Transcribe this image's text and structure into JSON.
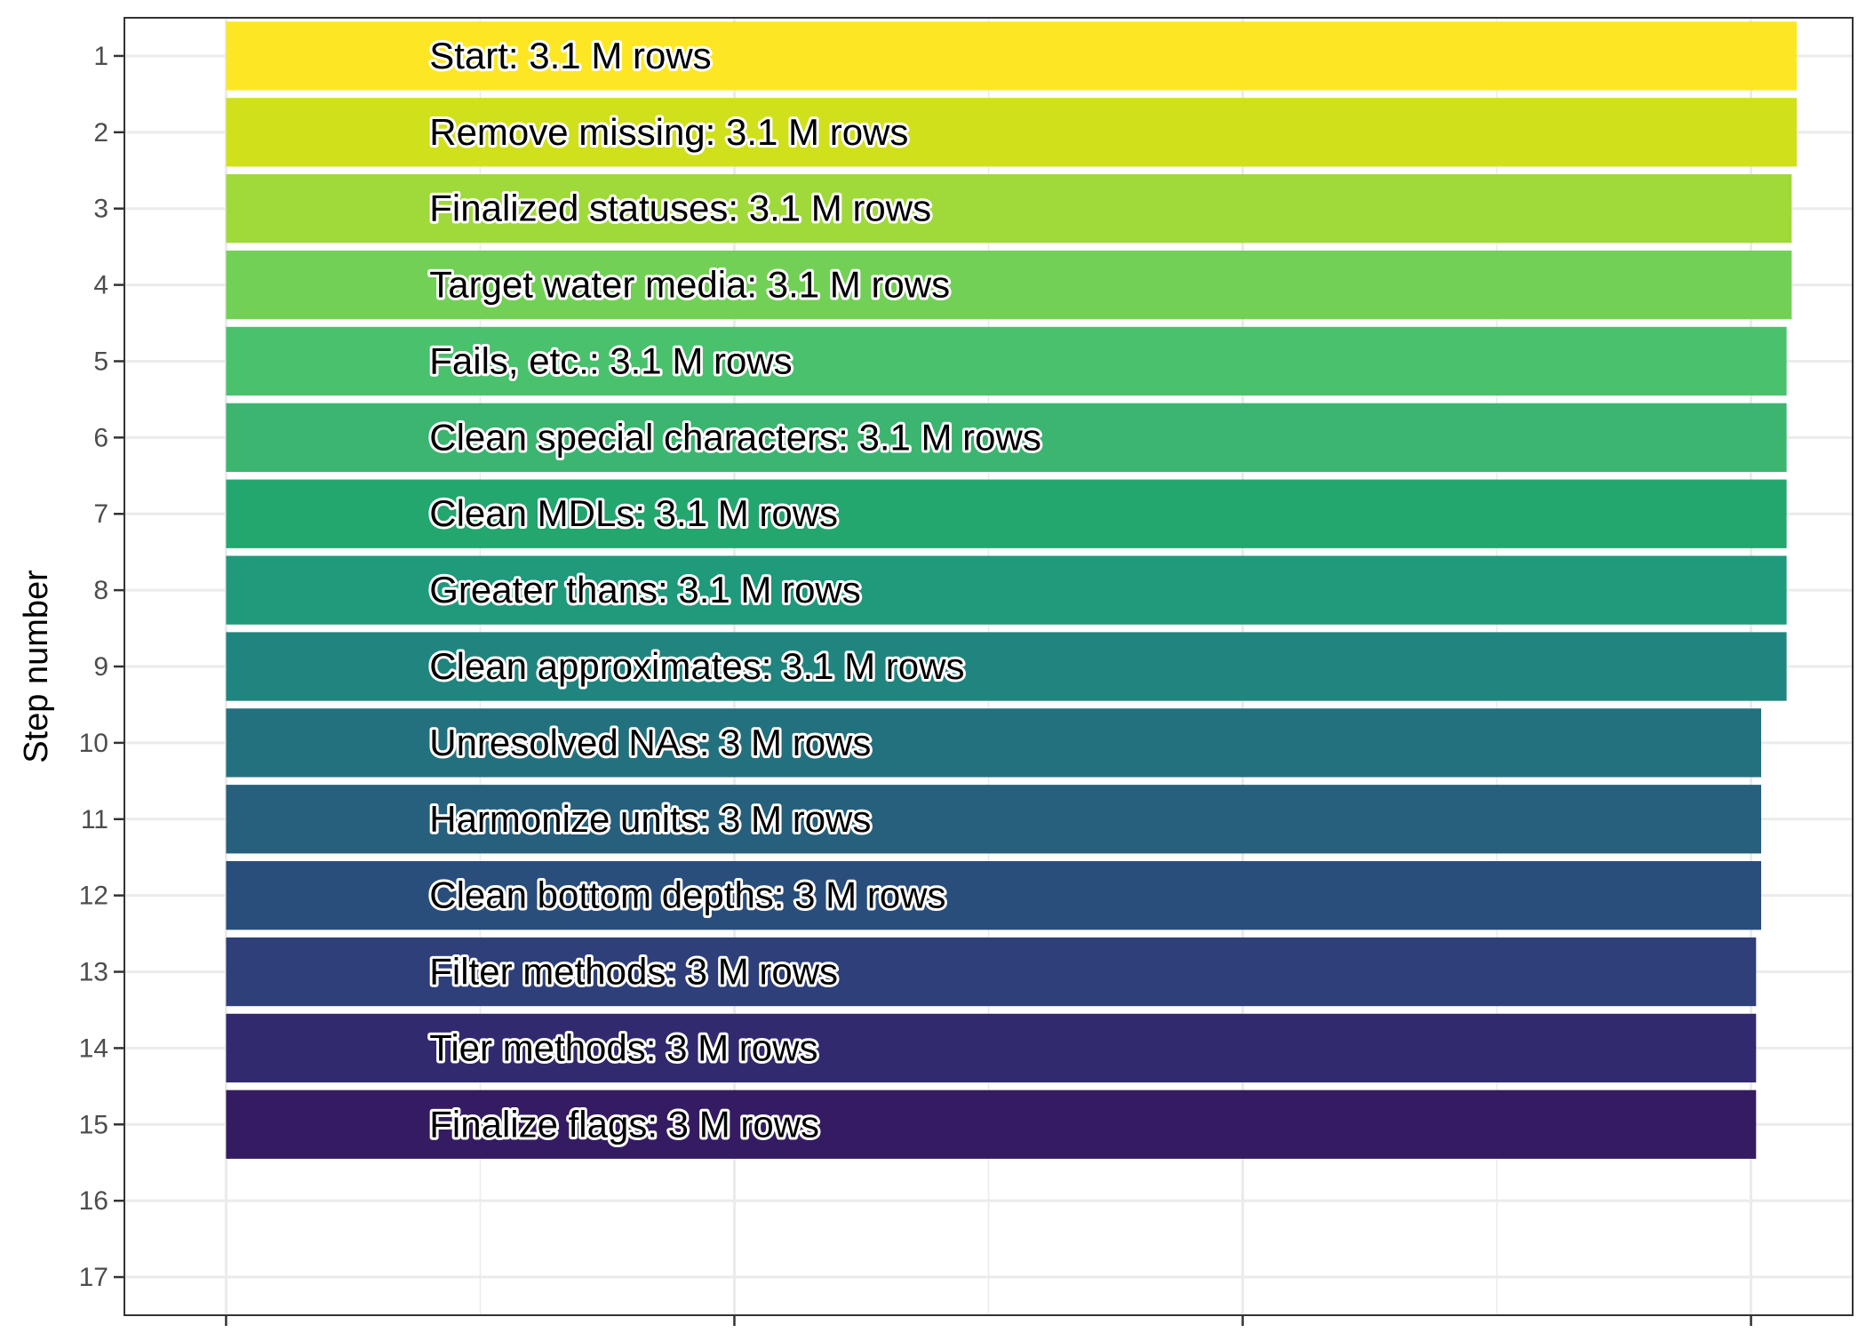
{
  "chart_data": {
    "type": "bar",
    "orientation": "horizontal",
    "ylabel": "Step number",
    "xlabel": "",
    "title": "",
    "y_ticks": [
      "1",
      "2",
      "3",
      "4",
      "5",
      "6",
      "7",
      "8",
      "9",
      "10",
      "11",
      "12",
      "13",
      "14",
      "15",
      "16",
      "17"
    ],
    "ylim": [
      0.5,
      17.5
    ],
    "xlim": [
      -0.2,
      3.2
    ],
    "x_ticks": [
      0,
      1,
      2,
      3
    ],
    "x_tick_labels": [
      "",
      "",
      "",
      ""
    ],
    "grid": true,
    "legend": "none",
    "categories": [
      1,
      2,
      3,
      4,
      5,
      6,
      7,
      8,
      9,
      10,
      11,
      12,
      13,
      14,
      15
    ],
    "labels": [
      "Start:  3.1 M rows",
      "Remove missing:  3.1 M rows",
      "Finalized statuses:  3.1 M rows",
      "Target water media:  3.1 M rows",
      "Fails, etc.:  3.1 M rows",
      "Clean special characters:  3.1 M rows",
      "Clean MDLs:  3.1 M rows",
      "Greater thans:  3.1 M rows",
      "Clean approximates:  3.1 M rows",
      "Unresolved NAs:  3 M rows",
      "Harmonize units:  3 M rows",
      "Clean bottom depths:  3 M rows",
      "Filter methods:  3 M rows",
      "Tier methods:  3 M rows",
      "Finalize flags:  3 M rows"
    ],
    "values": [
      3.09,
      3.09,
      3.08,
      3.08,
      3.07,
      3.07,
      3.07,
      3.07,
      3.07,
      3.02,
      3.02,
      3.02,
      3.01,
      3.01,
      3.01
    ],
    "colors": [
      "#FDE725",
      "#D0E11C",
      "#9FDA3A",
      "#73D056",
      "#4AC16D",
      "#3BB56F",
      "#24A66F",
      "#1F9A7A",
      "#21857F",
      "#23717F",
      "#26607D",
      "#2A4E7C",
      "#2E3F7A",
      "#322A6E",
      "#351C62"
    ]
  }
}
